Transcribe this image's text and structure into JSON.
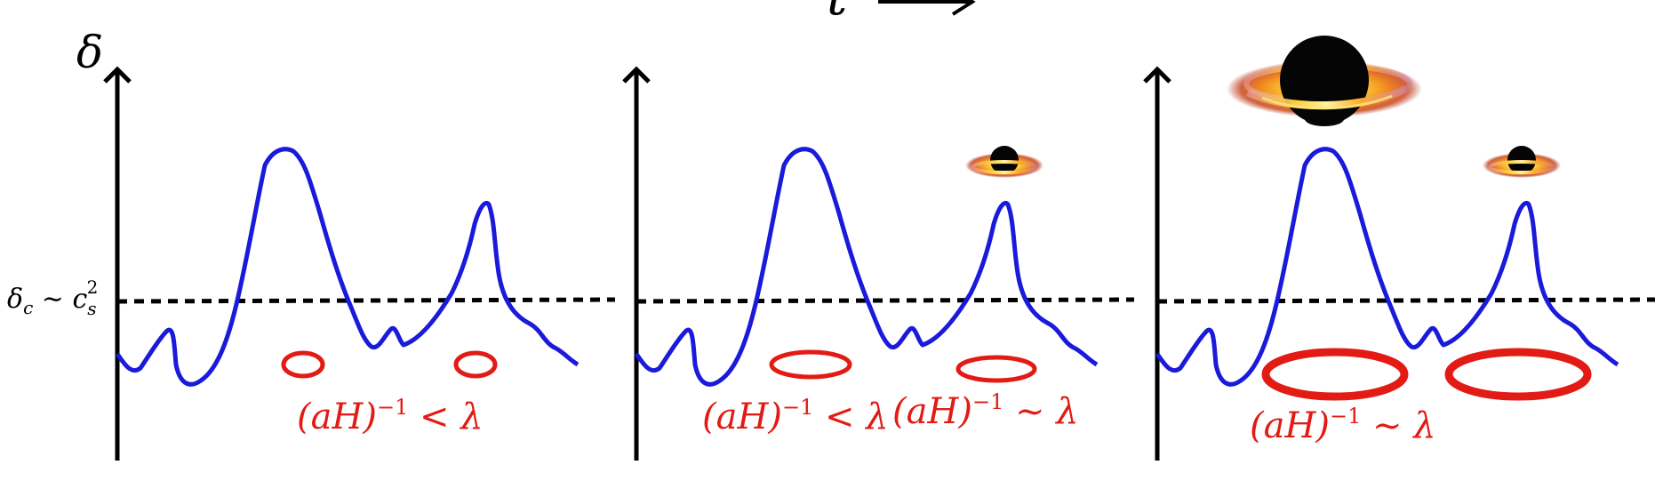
{
  "time_label": "t",
  "axis_label": "δ",
  "threshold_label": {
    "main": "δ",
    "sub": "c",
    "rel": " ∼ ",
    "c": "c",
    "c_sub": "s",
    "c_sup": "2"
  },
  "horizon_labels": {
    "panel1_a": {
      "base": "(aH)",
      "sup": "−1",
      "rel": " < λ"
    },
    "panel2_a": {
      "base": "(aH)",
      "sup": "−1",
      "rel": " < λ"
    },
    "panel2_b": {
      "base": "(aH)",
      "sup": "−1",
      "rel": " ∼ λ"
    },
    "panel3_a": {
      "base": "(aH)",
      "sup": "−1",
      "rel": " ∼ λ"
    }
  },
  "colors": {
    "curve": "#1a1adb",
    "horizon": "#e21b14",
    "axis": "#000000",
    "threshold": "#000000",
    "black_hole": "#050505",
    "disk": "#f0a020"
  },
  "icons": {
    "black_hole": "black-hole-with-accretion-disk-icon"
  }
}
